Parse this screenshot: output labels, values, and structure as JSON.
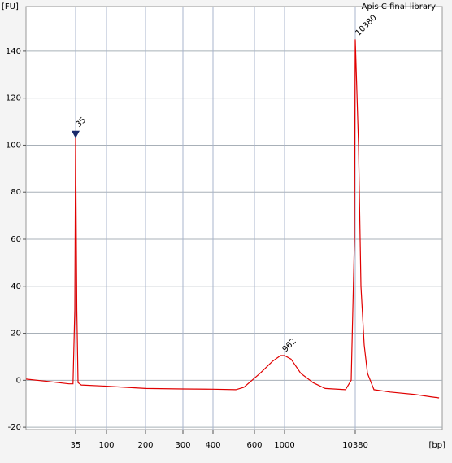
{
  "chart_data": {
    "type": "line",
    "title": "Apis C final library",
    "ylabel": "[FU]",
    "xlabel": "[bp]",
    "x_scale": "bp",
    "grid": true,
    "xlim": [
      6.5,
      185000
    ],
    "xticks": [
      35,
      100,
      200,
      300,
      400,
      600,
      1000,
      10380
    ],
    "ylim": [
      -21,
      159
    ],
    "yticks": [
      -20,
      0,
      20,
      40,
      60,
      80,
      100,
      120,
      140
    ],
    "series": [
      {
        "name": "Apis C final library",
        "color": "#e00000",
        "x": [
          6.5,
          14,
          28,
          32,
          34,
          35,
          36.5,
          38,
          42.5,
          100,
          200,
          300,
          400,
          500,
          541,
          586,
          661,
          813,
          933,
          1000,
          1240,
          1710,
          2560,
          3840,
          7520,
          9080,
          10100,
          10380,
          11560,
          12530,
          13950,
          15540,
          19270,
          33000,
          74000,
          126000,
          166000
        ],
        "values": [
          0.5,
          -0.5,
          -1.5,
          -1.5,
          30,
          103,
          30,
          -1,
          -2,
          -2.5,
          -3.5,
          -3.7,
          -3.8,
          -4,
          -3,
          0,
          3,
          8,
          10.5,
          10.5,
          9,
          3,
          -1,
          -3.5,
          -4,
          0,
          60,
          145,
          100,
          40,
          15,
          3,
          -4,
          -5,
          -6,
          -7,
          -7.5
        ]
      }
    ],
    "peaks": [
      {
        "x": 35,
        "y": 103,
        "color": "#007700"
      },
      {
        "x": 962,
        "y": 10.5,
        "color": "#000000"
      },
      {
        "x": 10380,
        "y": 145,
        "color": "#8a2be2"
      }
    ]
  }
}
